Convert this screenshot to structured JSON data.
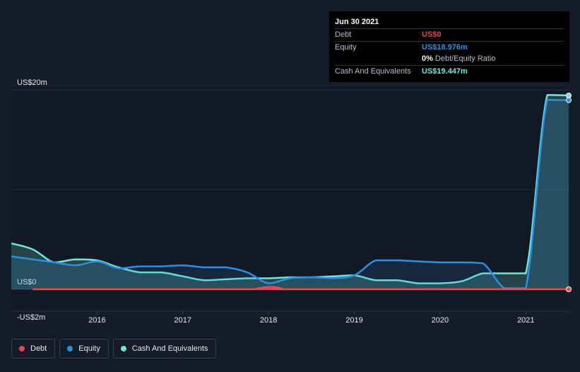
{
  "chart_data": {
    "type": "area",
    "x_unit": "year",
    "xlim": [
      2015.0,
      2021.5
    ],
    "ylim": [
      -2.2,
      20.3
    ],
    "y_unit": "US$m",
    "x_ticks": [
      {
        "value": 2016,
        "label": "2016"
      },
      {
        "value": 2017,
        "label": "2017"
      },
      {
        "value": 2018,
        "label": "2018"
      },
      {
        "value": 2019,
        "label": "2019"
      },
      {
        "value": 2020,
        "label": "2020"
      },
      {
        "value": 2021,
        "label": "2021"
      }
    ],
    "y_ticks": [
      {
        "value": 20,
        "label": "US$20m"
      },
      {
        "value": 0,
        "label": "US$0"
      },
      {
        "value": -2,
        "label": "-US$2m"
      }
    ],
    "gridlines": [
      20,
      10,
      0
    ],
    "series": [
      {
        "name": "Debt",
        "color": "#e8474f",
        "fill": false,
        "x": [
          2015.25,
          2017.75,
          2017.85,
          2017.95,
          2018.05,
          2018.15,
          2018.25,
          2021.5
        ],
        "y": [
          0,
          0,
          0.05,
          0.2,
          0.25,
          0.1,
          0,
          0
        ]
      },
      {
        "name": "Equity",
        "color": "#2e8fe0",
        "fill": true,
        "x": [
          2015.0,
          2015.25,
          2015.5,
          2015.75,
          2016.0,
          2016.25,
          2016.5,
          2016.75,
          2017.0,
          2017.25,
          2017.5,
          2017.75,
          2018.0,
          2018.25,
          2018.5,
          2018.75,
          2019.0,
          2019.25,
          2019.5,
          2019.75,
          2020.0,
          2020.25,
          2020.5,
          2020.75,
          2021.0,
          2021.25,
          2021.5
        ],
        "y": [
          3.3,
          3.0,
          2.7,
          2.4,
          2.8,
          2.1,
          2.3,
          2.3,
          2.4,
          2.2,
          2.2,
          1.7,
          0.6,
          1.1,
          1.2,
          1.1,
          1.4,
          2.9,
          2.9,
          2.8,
          2.7,
          2.7,
          2.6,
          0.1,
          0.1,
          19.0,
          18.976
        ]
      },
      {
        "name": "Cash And Equivalents",
        "color": "#6fe6d6",
        "fill": true,
        "x": [
          2015.0,
          2015.25,
          2015.5,
          2015.75,
          2016.0,
          2016.25,
          2016.5,
          2016.75,
          2017.0,
          2017.25,
          2017.5,
          2017.75,
          2018.0,
          2018.25,
          2018.5,
          2018.75,
          2019.0,
          2019.25,
          2019.5,
          2019.75,
          2020.0,
          2020.25,
          2020.5,
          2020.75,
          2021.0,
          2021.25,
          2021.5
        ],
        "y": [
          4.6,
          4.0,
          2.7,
          3.0,
          2.9,
          2.2,
          1.7,
          1.7,
          1.3,
          0.9,
          1.0,
          1.1,
          1.1,
          1.2,
          1.2,
          1.3,
          1.4,
          0.9,
          0.9,
          0.6,
          0.6,
          0.8,
          1.6,
          1.6,
          1.6,
          19.5,
          19.447
        ]
      }
    ]
  },
  "tooltip": {
    "date": "Jun 30 2021",
    "rows": [
      {
        "name": "Debt",
        "value": "US$0",
        "color": "#e8474f"
      },
      {
        "name": "Equity",
        "value": "US$18.976m",
        "color": "#2e8fe0"
      },
      {
        "name": "",
        "value": "0%",
        "sub": "Debt/Equity Ratio",
        "color": "#ffffff"
      },
      {
        "name": "Cash And Equivalents",
        "value": "US$19.447m",
        "color": "#6fe6d6"
      }
    ]
  },
  "legend": [
    {
      "label": "Debt",
      "color": "#e8474f"
    },
    {
      "label": "Equity",
      "color": "#2e8fe0"
    },
    {
      "label": "Cash And Equivalents",
      "color": "#6fe6d6"
    }
  ]
}
